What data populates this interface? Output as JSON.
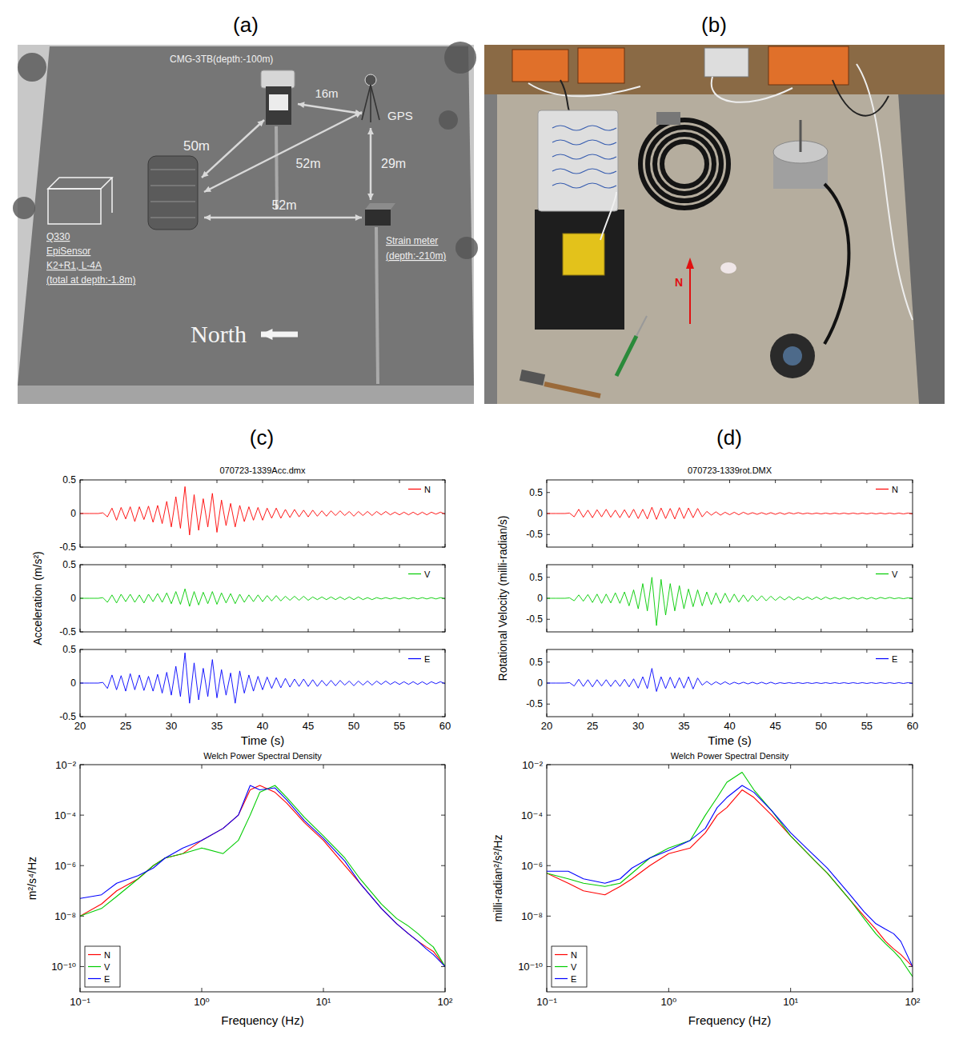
{
  "panel_labels": [
    "(a)",
    "(b)",
    "(c)",
    "(d)"
  ],
  "diagram": {
    "cmg": "CMG-3TB(depth:-100m)",
    "gps": "GPS",
    "strain": [
      "Strain meter",
      "(depth:-210m)"
    ],
    "surface": [
      "Q330",
      "EpiSensor",
      "K2+R1, L-4A",
      "(total at depth:-1.8m)"
    ],
    "distances": {
      "cmg_gps": "16m",
      "surface_cmg": "50m",
      "surface_gps": "52m",
      "gps_strain": "29m",
      "surface_strain": "52m"
    },
    "north": "North"
  },
  "photo": {
    "north": "N"
  },
  "chart_data": [
    {
      "type": "line",
      "title": "070723-1339Acc.dmx",
      "x_label": "Time (s)",
      "y_label": "Acceleration (m/s²)",
      "xlim": [
        20,
        60
      ],
      "xticks": [
        20,
        25,
        30,
        35,
        40,
        45,
        50,
        55,
        60
      ],
      "ylim": [
        -0.5,
        0.5
      ],
      "yticks": [
        -0.5,
        0,
        0.5
      ],
      "legend": "upper right",
      "x": [
        20,
        20.5,
        21,
        21.5,
        22,
        22.5,
        23,
        23.5,
        24,
        24.5,
        25,
        25.5,
        26,
        26.5,
        27,
        27.5,
        28,
        28.5,
        29,
        29.5,
        30,
        30.5,
        31,
        31.5,
        32,
        32.5,
        33,
        33.5,
        34,
        34.5,
        35,
        35.5,
        36,
        36.5,
        37,
        37.5,
        38,
        38.5,
        39,
        39.5,
        40,
        40.5,
        41,
        41.5,
        42,
        42.5,
        43,
        43.5,
        44,
        44.5,
        45,
        45.5,
        46,
        46.5,
        47,
        47.5,
        48,
        48.5,
        49,
        49.5,
        50,
        50.5,
        51,
        51.5,
        52,
        52.5,
        53,
        53.5,
        54,
        54.5,
        55,
        55.5,
        56,
        56.5,
        57,
        57.5,
        58,
        58.5,
        59,
        59.5,
        60
      ],
      "series": [
        {
          "name": "N",
          "color": "#ff0000",
          "values": [
            0,
            0,
            0,
            0,
            0,
            0.01,
            -0.05,
            0.08,
            -0.1,
            0.09,
            -0.08,
            0.1,
            -0.12,
            0.1,
            -0.09,
            0.11,
            -0.13,
            0.12,
            -0.15,
            0.18,
            -0.2,
            0.25,
            -0.22,
            0.4,
            -0.32,
            0.28,
            -0.25,
            0.22,
            -0.2,
            0.3,
            -0.28,
            0.2,
            -0.18,
            0.15,
            -0.2,
            0.12,
            -0.12,
            0.1,
            -0.1,
            0.09,
            -0.1,
            0.08,
            -0.07,
            0.08,
            -0.07,
            0.06,
            -0.06,
            0.06,
            -0.05,
            0.05,
            -0.05,
            0.05,
            -0.04,
            0.04,
            -0.04,
            0.04,
            -0.03,
            0.04,
            -0.03,
            0.03,
            -0.04,
            0.03,
            -0.03,
            0.03,
            -0.03,
            0.03,
            -0.02,
            0.03,
            -0.02,
            0.02,
            -0.02,
            0.02,
            -0.02,
            0.02,
            -0.02,
            0.02,
            -0.02,
            0.02,
            -0.01,
            0.02,
            -0.01
          ]
        },
        {
          "name": "V",
          "color": "#00cc00",
          "values": [
            0,
            0,
            0,
            0,
            0,
            0.01,
            -0.06,
            0.05,
            -0.07,
            0.06,
            -0.05,
            0.06,
            -0.06,
            0.05,
            -0.07,
            0.06,
            -0.05,
            0.07,
            -0.06,
            0.08,
            -0.08,
            0.1,
            -0.09,
            0.14,
            -0.12,
            0.1,
            -0.1,
            0.09,
            -0.08,
            0.1,
            -0.09,
            0.08,
            -0.07,
            0.07,
            -0.08,
            0.06,
            -0.06,
            0.05,
            -0.05,
            0.05,
            -0.05,
            0.04,
            -0.04,
            0.04,
            -0.04,
            0.03,
            -0.03,
            0.03,
            -0.03,
            0.03,
            -0.03,
            0.02,
            -0.02,
            0.02,
            -0.02,
            0.02,
            -0.02,
            0.02,
            -0.02,
            0.02,
            -0.02,
            0.02,
            -0.02,
            0.01,
            -0.02,
            0.01,
            -0.01,
            0.01,
            -0.01,
            0.01,
            -0.01,
            0.01,
            -0.01,
            0.01,
            -0.01,
            0.01,
            -0.01,
            0.01,
            -0.01,
            0.01,
            -0.01
          ]
        },
        {
          "name": "E",
          "color": "#0000ff",
          "values": [
            0,
            0,
            0,
            0,
            0,
            0.01,
            -0.08,
            0.12,
            -0.1,
            0.11,
            -0.12,
            0.14,
            -0.1,
            0.12,
            -0.11,
            0.1,
            -0.12,
            0.13,
            -0.15,
            0.16,
            -0.18,
            0.25,
            -0.2,
            0.45,
            -0.3,
            0.3,
            -0.25,
            0.22,
            -0.2,
            0.35,
            -0.22,
            0.2,
            -0.18,
            0.15,
            -0.3,
            0.18,
            -0.15,
            0.12,
            -0.12,
            0.1,
            -0.1,
            0.09,
            -0.08,
            0.08,
            -0.07,
            0.07,
            -0.06,
            0.06,
            -0.05,
            0.06,
            -0.05,
            0.05,
            -0.05,
            0.04,
            -0.04,
            0.04,
            -0.04,
            0.04,
            -0.03,
            0.03,
            -0.04,
            0.03,
            -0.03,
            0.03,
            -0.03,
            0.03,
            -0.02,
            0.03,
            -0.02,
            0.02,
            -0.02,
            0.02,
            -0.02,
            0.02,
            -0.02,
            0.02,
            -0.02,
            0.02,
            -0.01,
            0.02,
            -0.01
          ]
        }
      ]
    },
    {
      "type": "line",
      "title": "Welch Power Spectral Density",
      "x_label": "Frequency (Hz)",
      "y_label": "m²/s⁴/Hz",
      "log": true,
      "legend": "lower left",
      "xlim": [
        0.1,
        100
      ],
      "xticks": [
        {
          "value": 0.1,
          "label": "10⁻¹"
        },
        {
          "value": 1,
          "label": "10⁰"
        },
        {
          "value": 10,
          "label": "10¹"
        },
        {
          "value": 100,
          "label": "10²"
        }
      ],
      "ylim": [
        1e-11,
        0.01
      ],
      "yticks": [
        {
          "value": 1e-10,
          "label": "10⁻¹⁰"
        },
        {
          "value": 1e-08,
          "label": "10⁻⁸"
        },
        {
          "value": 1e-06,
          "label": "10⁻⁶"
        },
        {
          "value": 0.0001,
          "label": "10⁻⁴"
        },
        {
          "value": 0.01,
          "label": "10⁻²"
        }
      ],
      "x": [
        0.1,
        0.15,
        0.2,
        0.3,
        0.4,
        0.5,
        0.7,
        1,
        1.5,
        2,
        2.5,
        3,
        4,
        5,
        7,
        10,
        15,
        20,
        30,
        40,
        50,
        60,
        70,
        80,
        100
      ],
      "series": [
        {
          "name": "N",
          "color": "#ff0000",
          "values": [
            1e-08,
            3e-08,
            1e-07,
            3e-07,
            1e-06,
            2e-06,
            3e-06,
            1e-05,
            3e-05,
            0.0001,
            0.001,
            0.0015,
            0.0008,
            0.0003,
            5e-05,
            1e-05,
            1e-06,
            2e-07,
            2e-08,
            5e-09,
            2e-09,
            1e-09,
            6e-10,
            4e-10,
            1e-10
          ]
        },
        {
          "name": "V",
          "color": "#00cc00",
          "values": [
            1e-08,
            2e-08,
            6e-08,
            3e-07,
            1e-06,
            2e-06,
            3e-06,
            5e-06,
            3e-06,
            1e-05,
            0.0001,
            0.0008,
            0.0015,
            0.0005,
            8e-05,
            1.5e-05,
            2e-06,
            3e-07,
            3e-08,
            8e-09,
            4e-09,
            2e-09,
            1e-09,
            6e-10,
            1e-10
          ]
        },
        {
          "name": "E",
          "color": "#0000ff",
          "values": [
            5e-08,
            7e-08,
            2e-07,
            4e-07,
            8e-07,
            2e-06,
            5e-06,
            1e-05,
            3e-05,
            0.0001,
            0.0015,
            0.001,
            0.0012,
            0.0004,
            6e-05,
            1.2e-05,
            1.5e-06,
            2e-07,
            2e-08,
            5e-09,
            2e-09,
            1e-09,
            5e-10,
            3e-10,
            1e-10
          ]
        }
      ]
    },
    {
      "type": "line",
      "title": "070723-1339rot.DMX",
      "x_label": "Time (s)",
      "y_label": "Rotational Velocity (milli-radian/s)",
      "xlim": [
        20,
        60
      ],
      "xticks": [
        20,
        25,
        30,
        35,
        40,
        45,
        50,
        55,
        60
      ],
      "ylim": [
        -0.8,
        0.8
      ],
      "yticks": [
        -0.5,
        0,
        0.5
      ],
      "legend": "upper right",
      "x": [
        20,
        20.5,
        21,
        21.5,
        22,
        22.5,
        23,
        23.5,
        24,
        24.5,
        25,
        25.5,
        26,
        26.5,
        27,
        27.5,
        28,
        28.5,
        29,
        29.5,
        30,
        30.5,
        31,
        31.5,
        32,
        32.5,
        33,
        33.5,
        34,
        34.5,
        35,
        35.5,
        36,
        36.5,
        37,
        37.5,
        38,
        38.5,
        39,
        39.5,
        40,
        40.5,
        41,
        41.5,
        42,
        42.5,
        43,
        43.5,
        44,
        44.5,
        45,
        45.5,
        46,
        46.5,
        47,
        47.5,
        48,
        48.5,
        49,
        49.5,
        50,
        50.5,
        51,
        51.5,
        52,
        52.5,
        53,
        53.5,
        54,
        54.5,
        55,
        55.5,
        56,
        56.5,
        57,
        57.5,
        58,
        58.5,
        59,
        59.5,
        60
      ],
      "series": [
        {
          "name": "N",
          "color": "#ff0000",
          "values": [
            0,
            0,
            0,
            0,
            0,
            0.01,
            -0.08,
            0.1,
            -0.09,
            0.08,
            -0.1,
            0.09,
            -0.08,
            0.1,
            -0.09,
            0.08,
            -0.1,
            0.09,
            -0.1,
            0.1,
            -0.12,
            0.1,
            -0.13,
            0.15,
            -0.14,
            0.13,
            -0.12,
            0.12,
            -0.13,
            0.14,
            -0.12,
            0.13,
            -0.1,
            0.12,
            -0.08,
            0.05,
            -0.04,
            0.04,
            -0.04,
            0.03,
            -0.03,
            0.03,
            -0.03,
            0.03,
            -0.02,
            0.02,
            -0.02,
            0.02,
            -0.02,
            0.02,
            -0.02,
            0.02,
            -0.02,
            0.02,
            -0.01,
            0.02,
            -0.01,
            0.01,
            -0.01,
            0.01,
            -0.01,
            0.01,
            -0.01,
            0.01,
            -0.01,
            0.01,
            -0.01,
            0.01,
            -0.01,
            0.01,
            -0.01,
            0.01,
            -0.01,
            0.01,
            -0.01,
            0.01,
            -0.01,
            0.01,
            -0.01,
            0.01,
            -0.01
          ]
        },
        {
          "name": "V",
          "color": "#00cc00",
          "values": [
            0,
            0,
            0,
            0,
            0,
            0.01,
            -0.06,
            0.08,
            -0.07,
            0.09,
            -0.1,
            0.1,
            -0.12,
            0.1,
            -0.11,
            0.13,
            -0.12,
            0.15,
            -0.18,
            0.2,
            -0.25,
            0.35,
            -0.3,
            0.5,
            -0.65,
            0.45,
            -0.4,
            0.35,
            -0.3,
            0.3,
            -0.25,
            0.22,
            -0.2,
            0.2,
            -0.18,
            0.15,
            -0.15,
            0.13,
            -0.12,
            0.12,
            -0.1,
            0.1,
            -0.09,
            0.08,
            -0.08,
            0.07,
            -0.06,
            0.06,
            -0.06,
            0.05,
            -0.05,
            0.04,
            -0.04,
            0.04,
            -0.04,
            0.03,
            -0.03,
            0.03,
            -0.03,
            0.03,
            -0.03,
            0.03,
            -0.02,
            0.02,
            -0.02,
            0.02,
            -0.02,
            0.02,
            -0.02,
            0.02,
            -0.02,
            0.02,
            -0.02,
            0.02,
            -0.01,
            0.02,
            -0.01,
            0.01,
            -0.01,
            0.01,
            -0.01
          ]
        },
        {
          "name": "E",
          "color": "#0000ff",
          "values": [
            0,
            0,
            0,
            0,
            0,
            0.01,
            -0.07,
            0.09,
            -0.08,
            0.08,
            -0.09,
            0.08,
            -0.07,
            0.08,
            -0.08,
            0.07,
            -0.08,
            0.09,
            -0.09,
            0.1,
            -0.12,
            0.15,
            -0.13,
            0.35,
            -0.2,
            0.15,
            -0.13,
            0.14,
            -0.12,
            0.13,
            -0.12,
            0.15,
            -0.14,
            0.12,
            -0.05,
            0.04,
            -0.04,
            0.03,
            -0.03,
            0.03,
            -0.03,
            0.02,
            -0.02,
            0.02,
            -0.02,
            0.02,
            -0.02,
            0.02,
            -0.02,
            0.02,
            -0.02,
            0.01,
            -0.01,
            0.01,
            -0.01,
            0.01,
            -0.01,
            0.01,
            -0.01,
            0.01,
            -0.01,
            0.01,
            -0.01,
            0.01,
            -0.01,
            0.01,
            -0.01,
            0.01,
            -0.01,
            0.01,
            -0.01,
            0.01,
            -0.01,
            0.01,
            -0.01,
            0.01,
            -0.01,
            0.01,
            -0.01,
            0.01,
            -0.01
          ]
        }
      ]
    },
    {
      "type": "line",
      "title": "Welch Power Spectral Density",
      "x_label": "Frequency (Hz)",
      "y_label": "milli-radian²/s²/Hz",
      "log": true,
      "legend": "lower left",
      "xlim": [
        0.1,
        100
      ],
      "xticks": [
        {
          "value": 0.1,
          "label": "10⁻¹"
        },
        {
          "value": 1,
          "label": "10⁰"
        },
        {
          "value": 10,
          "label": "10¹"
        },
        {
          "value": 100,
          "label": "10²"
        }
      ],
      "ylim": [
        1e-11,
        0.01
      ],
      "yticks": [
        {
          "value": 1e-10,
          "label": "10⁻¹⁰"
        },
        {
          "value": 1e-08,
          "label": "10⁻⁸"
        },
        {
          "value": 1e-06,
          "label": "10⁻⁶"
        },
        {
          "value": 0.0001,
          "label": "10⁻⁴"
        },
        {
          "value": 0.01,
          "label": "10⁻²"
        }
      ],
      "x": [
        0.1,
        0.15,
        0.2,
        0.3,
        0.4,
        0.5,
        0.7,
        1,
        1.5,
        2,
        2.5,
        3,
        4,
        5,
        7,
        10,
        15,
        20,
        30,
        40,
        50,
        60,
        70,
        80,
        100
      ],
      "series": [
        {
          "name": "N",
          "color": "#ff0000",
          "values": [
            5e-07,
            2e-07,
            1e-07,
            7e-08,
            1.5e-07,
            3e-07,
            1e-06,
            3e-06,
            5e-06,
            2e-05,
            0.0001,
            0.0002,
            0.001,
            0.0005,
            0.0001,
            1.5e-05,
            2e-06,
            5e-07,
            5e-08,
            1e-08,
            3e-09,
            1e-09,
            5e-10,
            3e-10,
            1e-10
          ]
        },
        {
          "name": "V",
          "color": "#00cc00",
          "values": [
            5e-07,
            3e-07,
            2e-07,
            1.5e-07,
            2e-07,
            5e-07,
            2e-06,
            5e-06,
            1e-05,
            0.0001,
            0.0005,
            0.002,
            0.005,
            0.001,
            0.00015,
            1.5e-05,
            2e-06,
            5e-07,
            5e-08,
            8e-09,
            2e-09,
            8e-10,
            4e-10,
            2e-10,
            4e-11
          ]
        },
        {
          "name": "E",
          "color": "#0000ff",
          "values": [
            6e-07,
            6e-07,
            3e-07,
            2e-07,
            3e-07,
            8e-07,
            2e-06,
            4e-06,
            1e-05,
            3e-05,
            0.0002,
            0.0005,
            0.0015,
            0.0008,
            0.00015,
            2e-05,
            3e-06,
            8e-07,
            8e-08,
            1.5e-08,
            5e-09,
            3e-09,
            2e-09,
            1e-09,
            1e-10
          ]
        }
      ]
    }
  ]
}
